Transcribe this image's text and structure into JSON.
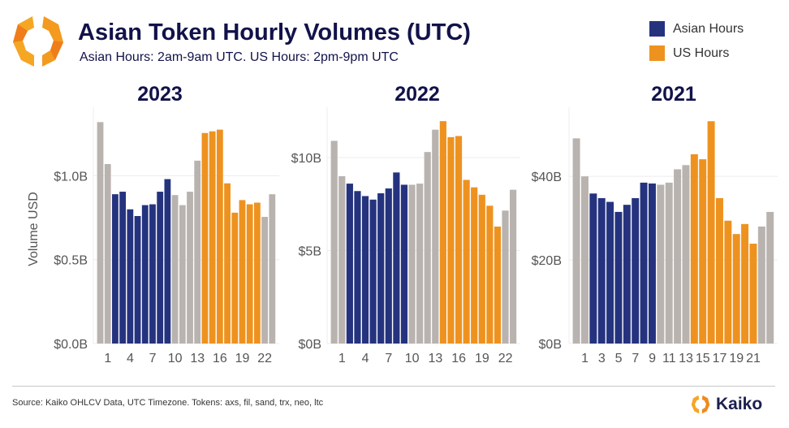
{
  "header": {
    "title": "Asian Token Hourly Volumes (UTC)",
    "subtitle": "Asian Hours: 2am-9am UTC. US Hours: 2pm-9pm UTC"
  },
  "legend": [
    {
      "label": "Asian Hours",
      "color": "#25337f"
    },
    {
      "label": "US Hours",
      "color": "#ee921f"
    }
  ],
  "colors": {
    "other": "#b9b3b0",
    "asian": "#25337f",
    "us": "#ee921f",
    "grid": "#ececec"
  },
  "footer": {
    "source": "Source: Kaiko OHLCV Data, UTC Timezone. Tokens: axs, fil, sand, trx, neo, ltc",
    "brand": "Kaiko"
  },
  "chart_data": [
    {
      "type": "bar",
      "title": "2023",
      "ylabel": "Volume USD",
      "xlabel": "",
      "ylim": [
        0,
        1.37
      ],
      "yticks": [
        {
          "v": 0,
          "label": "$0.0B"
        },
        {
          "v": 0.5,
          "label": "$0.5B"
        },
        {
          "v": 1.0,
          "label": "$1.0B"
        }
      ],
      "xticks": [
        {
          "hour": 1,
          "label": "1"
        },
        {
          "hour": 4,
          "label": "4"
        },
        {
          "hour": 7,
          "label": "7"
        },
        {
          "hour": 10,
          "label": "10"
        },
        {
          "hour": 13,
          "label": "13"
        },
        {
          "hour": 16,
          "label": "16"
        },
        {
          "hour": 19,
          "label": "19"
        },
        {
          "hour": 22,
          "label": "22"
        }
      ],
      "hours": [
        0,
        1,
        2,
        3,
        4,
        5,
        6,
        7,
        8,
        9,
        10,
        11,
        12,
        13,
        14,
        15,
        16,
        17,
        18,
        19,
        20,
        21,
        22,
        23
      ],
      "values": [
        1.32,
        1.07,
        0.89,
        0.905,
        0.8,
        0.76,
        0.825,
        0.83,
        0.905,
        0.98,
        0.885,
        0.825,
        0.905,
        1.09,
        1.255,
        1.265,
        1.275,
        0.955,
        0.78,
        0.855,
        0.83,
        0.84,
        0.755,
        0.89
      ],
      "unit": "USD billions"
    },
    {
      "type": "bar",
      "title": "2022",
      "ylabel": "",
      "xlabel": "",
      "ylim": [
        0,
        12.36
      ],
      "yticks": [
        {
          "v": 0,
          "label": "$0B"
        },
        {
          "v": 5,
          "label": "$5B"
        },
        {
          "v": 10,
          "label": "$10B"
        }
      ],
      "xticks": [
        {
          "hour": 1,
          "label": "1"
        },
        {
          "hour": 4,
          "label": "4"
        },
        {
          "hour": 7,
          "label": "7"
        },
        {
          "hour": 10,
          "label": "10"
        },
        {
          "hour": 13,
          "label": "13"
        },
        {
          "hour": 16,
          "label": "16"
        },
        {
          "hour": 19,
          "label": "19"
        },
        {
          "hour": 22,
          "label": "22"
        }
      ],
      "hours": [
        0,
        1,
        2,
        3,
        4,
        5,
        6,
        7,
        8,
        9,
        10,
        11,
        12,
        13,
        14,
        15,
        16,
        17,
        18,
        19,
        20,
        21,
        22,
        23
      ],
      "values": [
        10.9,
        9.0,
        8.6,
        8.2,
        7.93,
        7.74,
        8.08,
        8.34,
        9.2,
        8.54,
        8.54,
        8.6,
        10.3,
        11.5,
        11.96,
        11.1,
        11.16,
        8.8,
        8.4,
        8.0,
        7.41,
        6.29,
        7.15,
        8.27
      ],
      "unit": "USD billions"
    },
    {
      "type": "bar",
      "title": "2021",
      "ylabel": "",
      "xlabel": "",
      "ylim": [
        0,
        55
      ],
      "yticks": [
        {
          "v": 0,
          "label": "$0B"
        },
        {
          "v": 20,
          "label": "$20B"
        },
        {
          "v": 40,
          "label": "$40B"
        }
      ],
      "xticks": [
        {
          "hour": 1,
          "label": "1"
        },
        {
          "hour": 3,
          "label": "3"
        },
        {
          "hour": 5,
          "label": "5"
        },
        {
          "hour": 7,
          "label": "7"
        },
        {
          "hour": 9,
          "label": "9"
        },
        {
          "hour": 11,
          "label": "11"
        },
        {
          "hour": 13,
          "label": "13"
        },
        {
          "hour": 15,
          "label": "15"
        },
        {
          "hour": 17,
          "label": "17"
        },
        {
          "hour": 19,
          "label": "19"
        },
        {
          "hour": 21,
          "label": "21"
        }
      ],
      "hours": [
        0,
        1,
        2,
        3,
        4,
        5,
        6,
        7,
        8,
        9,
        10,
        11,
        12,
        13,
        14,
        15,
        16,
        17,
        18,
        19,
        20,
        21,
        22,
        23
      ],
      "values": [
        49.1,
        40.0,
        35.9,
        34.8,
        33.9,
        31.5,
        33.2,
        34.8,
        38.5,
        38.3,
        38.0,
        38.5,
        41.7,
        42.7,
        45.3,
        44.1,
        53.2,
        34.8,
        29.4,
        26.2,
        28.6,
        23.9,
        28.0,
        31.5
      ],
      "unit": "USD billions"
    }
  ]
}
